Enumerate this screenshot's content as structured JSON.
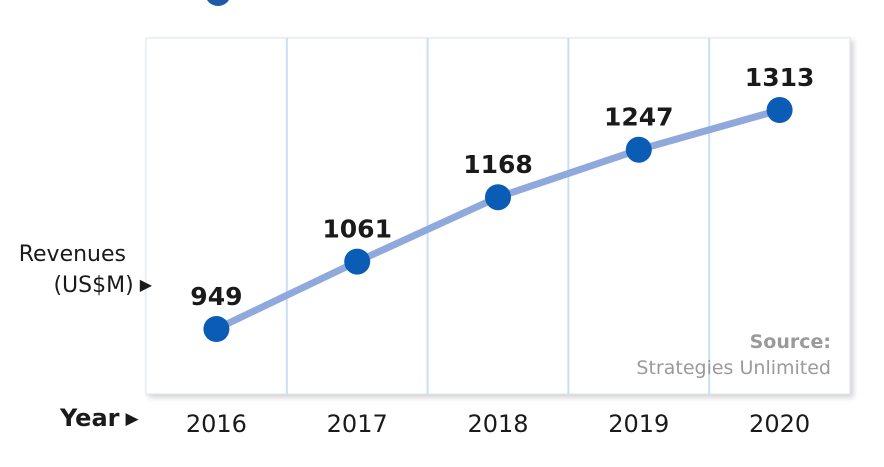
{
  "chart_data": {
    "type": "line",
    "title": "",
    "ylabel_line1": "Revenues",
    "ylabel_line2": "(US$M)",
    "xlabel": "Year",
    "categories": [
      "2016",
      "2017",
      "2018",
      "2019",
      "2020"
    ],
    "series": [
      {
        "values": [
          949,
          1061,
          1168,
          1247,
          1313
        ]
      }
    ],
    "data_labels": [
      "949",
      "1061",
      "1168",
      "1247",
      "1313"
    ],
    "source_label": "Source:",
    "source_text": "Strategies Unlimited",
    "grid": true,
    "colors": {
      "line": "#8fa9dc",
      "marker": "#0b5cb5",
      "grid": "#c9dff3",
      "plot_bg": "#ffffff",
      "plot_border": "#dde6f0",
      "title_fragment": "#1f5aa6"
    }
  }
}
